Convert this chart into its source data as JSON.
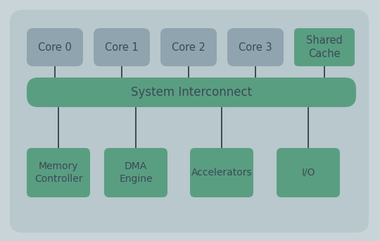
{
  "bg_inner_color": "#b8c8cc",
  "bg_outer_color": "#c8d4d8",
  "gray_box_color": "#8fa4ae",
  "green_box_color": "#5a9e82",
  "line_color": "#3a4a54",
  "cores": [
    "Core 0",
    "Core 1",
    "Core 2",
    "Core 3"
  ],
  "shared": "Shared\nCache",
  "interconnect": "System Interconnect",
  "bottom_boxes": [
    "Memory\nController",
    "DMA\nEngine",
    "Accelerators",
    "I/O"
  ],
  "gray_text_color": "#3a4a54",
  "green_text_color": "#3a4a54",
  "interconnect_text_color": "#3a4a54",
  "figsize": [
    5.4,
    3.42
  ],
  "dpi": 100
}
